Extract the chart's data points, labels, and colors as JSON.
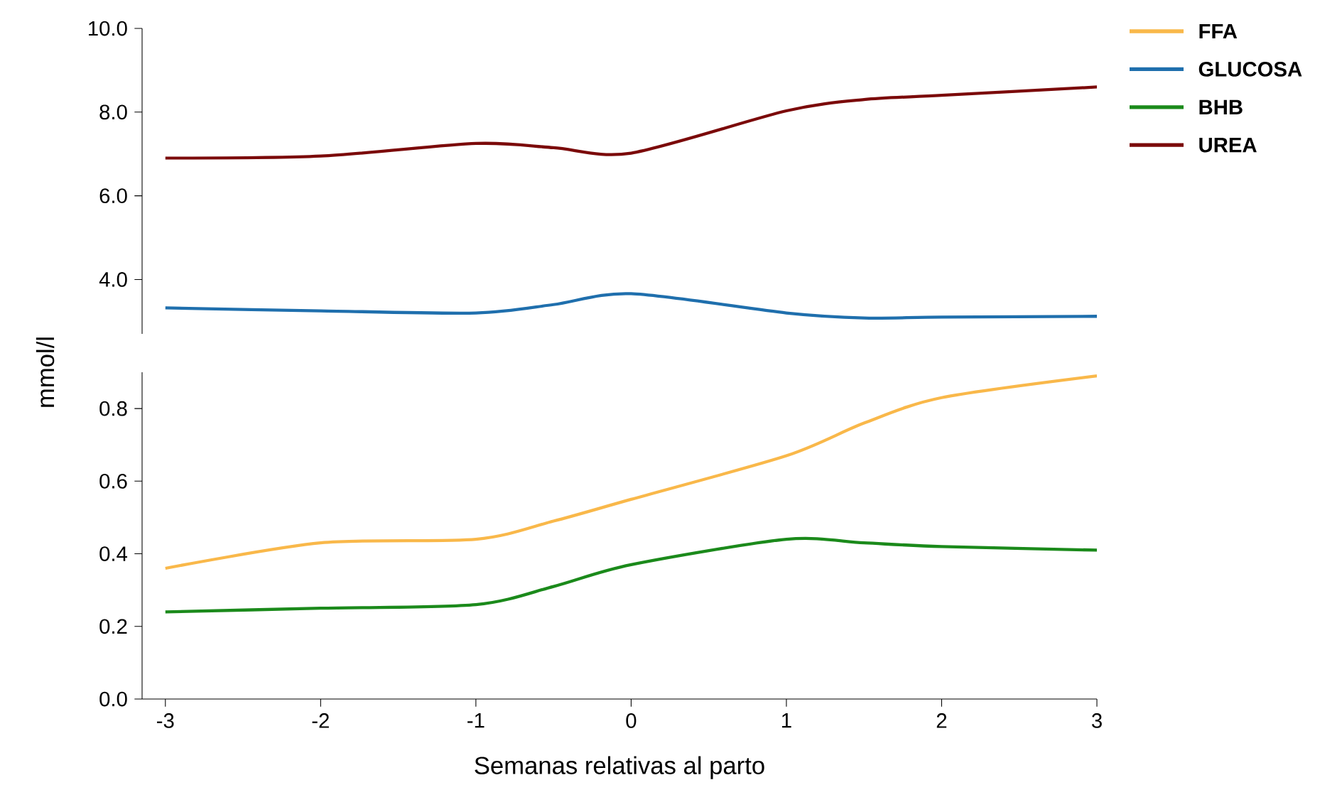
{
  "chart_data": [
    {
      "type": "line",
      "x": [
        -3,
        -2,
        -1,
        -0.5,
        0,
        1,
        1.5,
        2,
        3
      ],
      "xlim": [
        -3.15,
        3
      ],
      "ylim": [
        2.7,
        10
      ],
      "yticks": [
        {
          "value": 4,
          "label": "4.0"
        },
        {
          "value": 6,
          "label": "6.0"
        },
        {
          "value": 8,
          "label": "8.0"
        },
        {
          "value": 10,
          "label": "10.0"
        }
      ],
      "tick_labels": "y",
      "legend": "right",
      "series": [
        {
          "name": "GLUCOSA",
          "color": "#1f6fad",
          "values": [
            3.32,
            3.25,
            3.2,
            3.4,
            3.66,
            3.2,
            3.08,
            3.1,
            3.12
          ]
        },
        {
          "name": "UREA",
          "color": "#7b0a0a",
          "values": [
            6.9,
            6.95,
            7.25,
            7.15,
            7.02,
            8.03,
            8.3,
            8.4,
            8.6
          ]
        }
      ]
    },
    {
      "type": "line",
      "x": [
        -3,
        -2,
        -1,
        -0.5,
        0,
        1,
        1.5,
        2,
        3
      ],
      "xlim": [
        -3.15,
        3
      ],
      "ylim": [
        0,
        0.9
      ],
      "xticks": [
        -3,
        -2,
        -1,
        0,
        1,
        2,
        3
      ],
      "yticks": [
        {
          "value": 0,
          "label": "0.0"
        },
        0.2,
        0.4,
        0.6,
        0.8
      ],
      "xlabel": "Semanas relativas al parto",
      "ylabel": "mmol/l",
      "legend": "right",
      "series": [
        {
          "name": "FFA",
          "color": "#f9b84a",
          "values": [
            0.36,
            0.43,
            0.44,
            0.49,
            0.55,
            0.67,
            0.76,
            0.83,
            0.89
          ]
        },
        {
          "name": "BHB",
          "color": "#1b8a1b",
          "values": [
            0.24,
            0.25,
            0.26,
            0.31,
            0.37,
            0.44,
            0.43,
            0.42,
            0.41
          ]
        }
      ]
    }
  ]
}
